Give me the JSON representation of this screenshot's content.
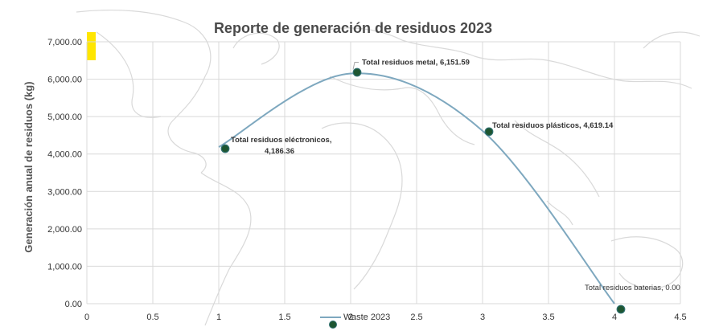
{
  "chart_data": {
    "type": "scatter",
    "title": "Reporte de generación de residuos 2023",
    "ylabel": "Generación anual de residuos (kg)",
    "xlabel": "",
    "xlim": [
      0,
      4.5
    ],
    "ylim": [
      0,
      7000
    ],
    "x_ticks": [
      "0",
      "0.5",
      "1",
      "1.5",
      "2",
      "2.5",
      "3",
      "3.5",
      "4",
      "4.5"
    ],
    "y_ticks": [
      "0.00",
      "1,000.00",
      "2,000.00",
      "3,000.00",
      "4,000.00",
      "5,000.00",
      "6,000.00",
      "7,000.00"
    ],
    "grid": true,
    "legend": {
      "position": "bottom",
      "entries": [
        "Waste 2023"
      ]
    },
    "colors": {
      "line": "#7ea8bf",
      "marker_fill": "#1e5631",
      "marker_stroke": "#2e6e6e",
      "highlight": "#ffe600"
    },
    "series": [
      {
        "name": "Waste 2023",
        "x": [
          1,
          2,
          3,
          4
        ],
        "y": [
          4186.36,
          6151.59,
          4619.14,
          0
        ]
      }
    ],
    "data_labels": [
      {
        "line1": "Total residuos eléctronicos,",
        "line2": "4,186.36"
      },
      {
        "line1": "Total residuos metal, 6,151.59"
      },
      {
        "line1": "Total residuos plásticos, 4,619.14"
      },
      {
        "line1": "Total residuos baterias, 0.00"
      }
    ]
  }
}
